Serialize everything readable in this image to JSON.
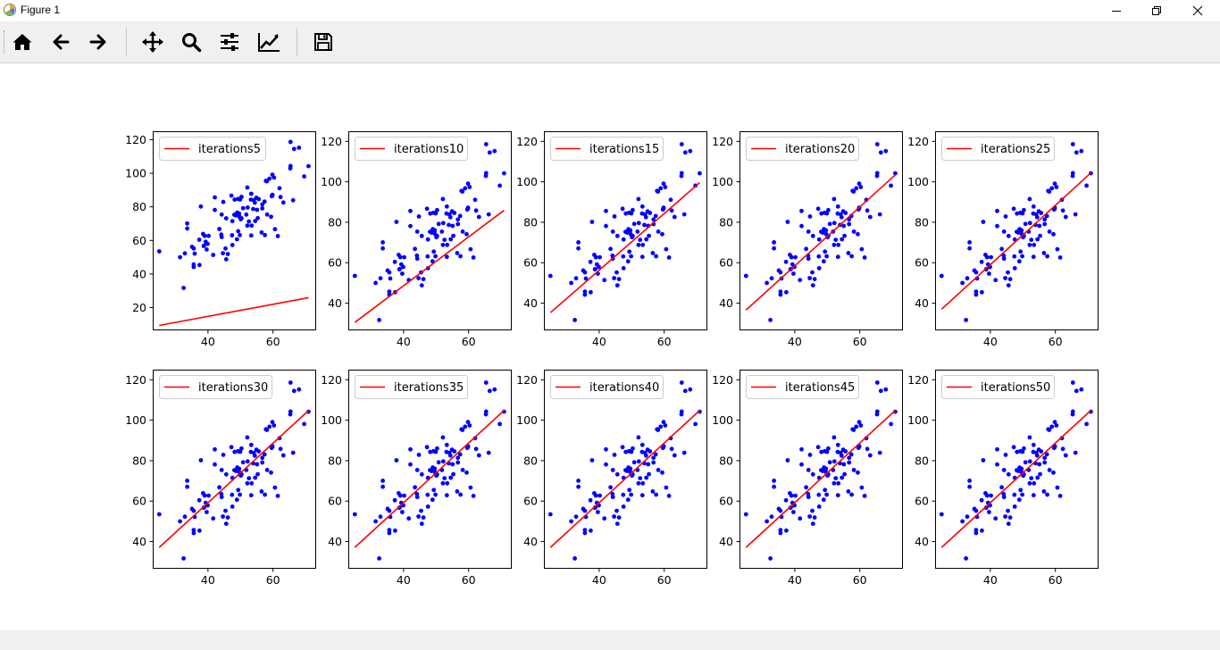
{
  "window": {
    "title": "Figure 1",
    "controls": {
      "minimize": "minimize-icon",
      "restore": "restore-icon",
      "close": "close-icon"
    }
  },
  "toolbar": {
    "buttons": [
      {
        "name": "home-button",
        "icon": "home-icon"
      },
      {
        "name": "back-button",
        "icon": "arrow-left-icon"
      },
      {
        "name": "forward-button",
        "icon": "arrow-right-icon"
      },
      {
        "name": "pan-button",
        "icon": "move-icon"
      },
      {
        "name": "zoom-button",
        "icon": "magnifier-icon"
      },
      {
        "name": "configure-subplots-button",
        "icon": "sliders-icon"
      },
      {
        "name": "edit-axis-button",
        "icon": "line-chart-icon"
      },
      {
        "name": "save-button",
        "icon": "floppy-disk-icon"
      }
    ]
  },
  "colors": {
    "points": "#0000ff",
    "fit_line": "#ff0000"
  },
  "scatter_points": [
    [
      32.5,
      31.7
    ],
    [
      53.4,
      68.8
    ],
    [
      61.5,
      62.6
    ],
    [
      47.5,
      71.5
    ],
    [
      59.8,
      87.2
    ],
    [
      55.1,
      78.2
    ],
    [
      52.2,
      79.6
    ],
    [
      39.3,
      59.2
    ],
    [
      48.1,
      75.3
    ],
    [
      52.6,
      71.3
    ],
    [
      45.4,
      55.2
    ],
    [
      54.4,
      82.5
    ],
    [
      44.2,
      62.0
    ],
    [
      58.2,
      75.4
    ],
    [
      56.7,
      81.4
    ],
    [
      48.9,
      60.7
    ],
    [
      44.7,
      82.9
    ],
    [
      60.3,
      97.4
    ],
    [
      45.6,
      48.8
    ],
    [
      38.8,
      56.9
    ],
    [
      66.2,
      83.9
    ],
    [
      65.4,
      118.6
    ],
    [
      47.5,
      57.3
    ],
    [
      41.6,
      51.4
    ],
    [
      51.8,
      75.4
    ],
    [
      59.4,
      74.1
    ],
    [
      57.8,
      95.5
    ],
    [
      58.1,
      95.2
    ],
    [
      56.7,
      79.1
    ],
    [
      32.9,
      52.3
    ],
    [
      54.1,
      83.9
    ],
    [
      39.9,
      57.9
    ],
    [
      47.4,
      63.1
    ],
    [
      50.3,
      73.2
    ],
    [
      49.9,
      84.4
    ],
    [
      48.6,
      74.9
    ],
    [
      35.6,
      55.2
    ],
    [
      38.5,
      63.9
    ],
    [
      45.6,
      73.2
    ],
    [
      65.3,
      102.9
    ],
    [
      49.7,
      74.1
    ],
    [
      35.6,
      44.2
    ],
    [
      37.8,
      80.2
    ],
    [
      44.1,
      63.5
    ],
    [
      42.1,
      78.1
    ],
    [
      39.0,
      62.7
    ],
    [
      62.3,
      85.8
    ],
    [
      55.6,
      84.6
    ],
    [
      53.3,
      87.8
    ],
    [
      53.9,
      78.7
    ],
    [
      38.7,
      56.7
    ],
    [
      35.9,
      52.2
    ],
    [
      49.0,
      76.6
    ],
    [
      44.6,
      52.4
    ],
    [
      59.8,
      86.8
    ],
    [
      49.6,
      76.0
    ],
    [
      56.5,
      64.8
    ],
    [
      50.8,
      79.2
    ],
    [
      53.2,
      84.3
    ],
    [
      55.3,
      73.3
    ],
    [
      53.3,
      62.9
    ],
    [
      50.1,
      72.6
    ],
    [
      46.1,
      51.9
    ],
    [
      59.6,
      86.3
    ],
    [
      57.5,
      63.2
    ],
    [
      49.8,
      63.2
    ],
    [
      54.9,
      85.4
    ],
    [
      52.1,
      68.8
    ],
    [
      44.2,
      75.4
    ],
    [
      47.2,
      86.7
    ],
    [
      33.6,
      70.1
    ],
    [
      40.2,
      62.7
    ],
    [
      33.6,
      67.1
    ],
    [
      59.8,
      99.1
    ],
    [
      54.5,
      71.6
    ],
    [
      43.5,
      66.8
    ],
    [
      50.3,
      86.0
    ],
    [
      57.4,
      83.1
    ],
    [
      35.6,
      45.7
    ],
    [
      39.6,
      54.6
    ],
    [
      52.1,
      91.5
    ],
    [
      37.3,
      60.4
    ],
    [
      48.2,
      84.3
    ],
    [
      69.6,
      98.1
    ],
    [
      31.4,
      50.0
    ],
    [
      37.4,
      45.4
    ],
    [
      49.2,
      84.7
    ],
    [
      49.3,
      65.5
    ],
    [
      65.4,
      104.3
    ],
    [
      25.0,
      53.5
    ],
    [
      58.9,
      96.8
    ],
    [
      35.1,
      56.2
    ],
    [
      42.1,
      85.6
    ],
    [
      60.6,
      66.7
    ],
    [
      66.5,
      114.5
    ],
    [
      68.0,
      115.2
    ],
    [
      62.0,
      91.1
    ],
    [
      70.9,
      104.2
    ],
    [
      63.2,
      82.6
    ]
  ],
  "chart_data": [
    {
      "type": "scatter",
      "legend": "iterations5",
      "x_ticks": [
        "40",
        "60"
      ],
      "y_ticks": [
        "20",
        "40",
        "60",
        "80",
        "100",
        "120"
      ],
      "xlim": [
        23,
        73
      ],
      "ylim": [
        7,
        125
      ],
      "fit_line": {
        "x": [
          25,
          70.9
        ],
        "y": [
          9.4,
          25.9
        ]
      }
    },
    {
      "type": "scatter",
      "legend": "iterations10",
      "x_ticks": [
        "40",
        "60"
      ],
      "y_ticks": [
        "40",
        "60",
        "80",
        "100",
        "120"
      ],
      "xlim": [
        23,
        73
      ],
      "ylim": [
        27,
        125
      ],
      "fit_line": {
        "x": [
          25,
          70.9
        ],
        "y": [
          30.5,
          85.9
        ]
      }
    },
    {
      "type": "scatter",
      "legend": "iterations15",
      "x_ticks": [
        "40",
        "60"
      ],
      "y_ticks": [
        "40",
        "60",
        "80",
        "100",
        "120"
      ],
      "xlim": [
        23,
        73
      ],
      "ylim": [
        27,
        125
      ],
      "fit_line": {
        "x": [
          25,
          70.9
        ],
        "y": [
          35.3,
          99.6
        ]
      }
    },
    {
      "type": "scatter",
      "legend": "iterations20",
      "x_ticks": [
        "40",
        "60"
      ],
      "y_ticks": [
        "40",
        "60",
        "80",
        "100",
        "120"
      ],
      "xlim": [
        23,
        73
      ],
      "ylim": [
        27,
        125
      ],
      "fit_line": {
        "x": [
          25,
          70.9
        ],
        "y": [
          36.6,
          103.4
        ]
      }
    },
    {
      "type": "scatter",
      "legend": "iterations25",
      "x_ticks": [
        "40",
        "60"
      ],
      "y_ticks": [
        "40",
        "60",
        "80",
        "100",
        "120"
      ],
      "xlim": [
        23,
        73
      ],
      "ylim": [
        27,
        125
      ],
      "fit_line": {
        "x": [
          25,
          70.9
        ],
        "y": [
          37.0,
          104.4
        ]
      }
    },
    {
      "type": "scatter",
      "legend": "iterations30",
      "x_ticks": [
        "40",
        "60"
      ],
      "y_ticks": [
        "40",
        "60",
        "80",
        "100",
        "120"
      ],
      "xlim": [
        23,
        73
      ],
      "ylim": [
        27,
        125
      ],
      "fit_line": {
        "x": [
          25,
          70.9
        ],
        "y": [
          37.1,
          104.7
        ]
      }
    },
    {
      "type": "scatter",
      "legend": "iterations35",
      "x_ticks": [
        "40",
        "60"
      ],
      "y_ticks": [
        "40",
        "60",
        "80",
        "100",
        "120"
      ],
      "xlim": [
        23,
        73
      ],
      "ylim": [
        27,
        125
      ],
      "fit_line": {
        "x": [
          25,
          70.9
        ],
        "y": [
          37.1,
          104.8
        ]
      }
    },
    {
      "type": "scatter",
      "legend": "iterations40",
      "x_ticks": [
        "40",
        "60"
      ],
      "y_ticks": [
        "40",
        "60",
        "80",
        "100",
        "120"
      ],
      "xlim": [
        23,
        73
      ],
      "ylim": [
        27,
        125
      ],
      "fit_line": {
        "x": [
          25,
          70.9
        ],
        "y": [
          37.1,
          104.8
        ]
      }
    },
    {
      "type": "scatter",
      "legend": "iterations45",
      "x_ticks": [
        "40",
        "60"
      ],
      "y_ticks": [
        "40",
        "60",
        "80",
        "100",
        "120"
      ],
      "xlim": [
        23,
        73
      ],
      "ylim": [
        27,
        125
      ],
      "fit_line": {
        "x": [
          25,
          70.9
        ],
        "y": [
          37.1,
          104.8
        ]
      }
    },
    {
      "type": "scatter",
      "legend": "iterations50",
      "x_ticks": [
        "40",
        "60"
      ],
      "y_ticks": [
        "40",
        "60",
        "80",
        "100",
        "120"
      ],
      "xlim": [
        23,
        73
      ],
      "ylim": [
        27,
        125
      ],
      "fit_line": {
        "x": [
          25,
          70.9
        ],
        "y": [
          37.1,
          104.8
        ]
      }
    }
  ]
}
